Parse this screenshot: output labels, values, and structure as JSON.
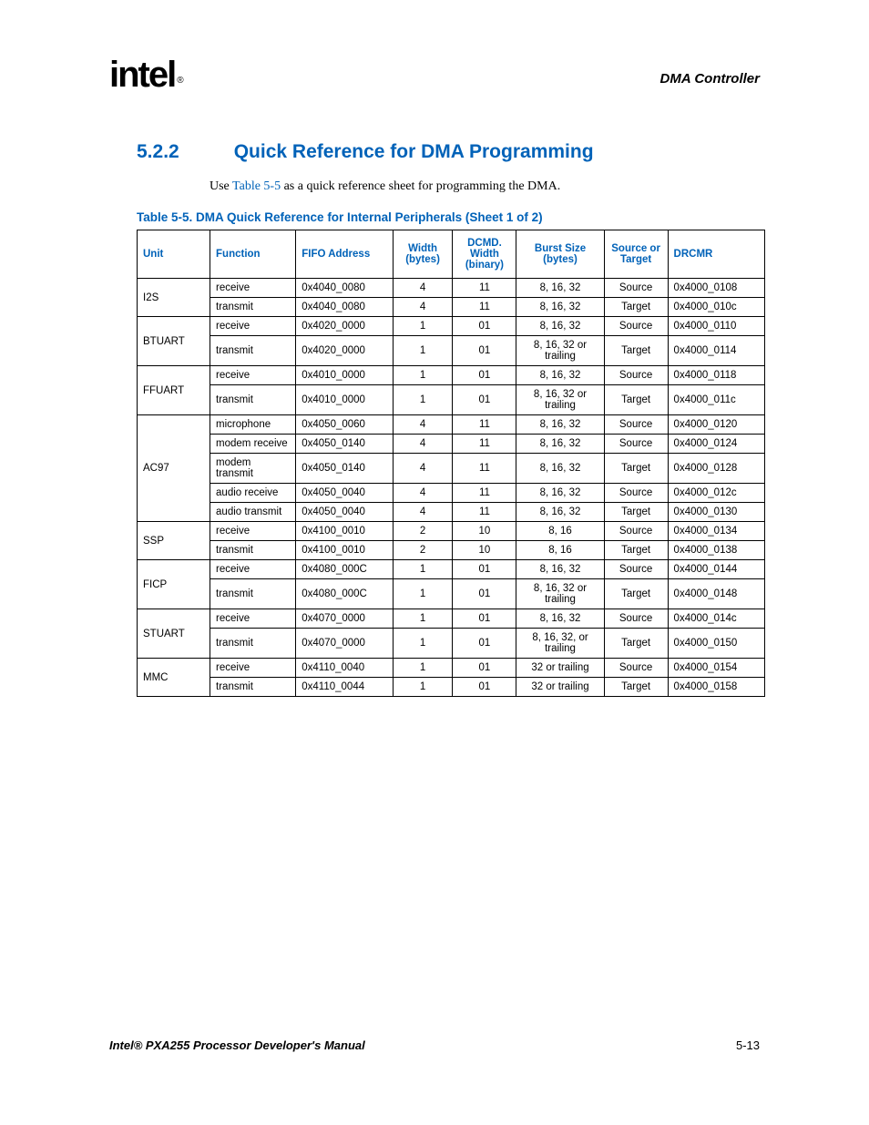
{
  "header": {
    "logo_text": "intel",
    "doc_section": "DMA Controller"
  },
  "section": {
    "number": "5.2.2",
    "title": "Quick Reference for DMA Programming"
  },
  "body": {
    "prefix": "Use ",
    "link": "Table 5-5",
    "suffix": " as a quick reference sheet for programming the DMA."
  },
  "table": {
    "caption": "Table 5-5. DMA Quick Reference for Internal Peripherals (Sheet 1 of 2)",
    "headers": {
      "unit": "Unit",
      "function": "Function",
      "fifo": "FIFO Address",
      "width": "Width (bytes)",
      "dcmd": "DCMD. Width (binary)",
      "burst": "Burst Size (bytes)",
      "src": "Source or Target",
      "drcmr": "DRCMR"
    },
    "groups": [
      {
        "unit": "I2S",
        "rows": [
          {
            "func": "receive",
            "fifo": "0x4040_0080",
            "width": "4",
            "dcmd": "11",
            "burst": "8, 16, 32",
            "src": "Source",
            "drcmr": "0x4000_0108"
          },
          {
            "func": "transmit",
            "fifo": "0x4040_0080",
            "width": "4",
            "dcmd": "11",
            "burst": "8, 16, 32",
            "src": "Target",
            "drcmr": "0x4000_010c"
          }
        ]
      },
      {
        "unit": "BTUART",
        "rows": [
          {
            "func": "receive",
            "fifo": "0x4020_0000",
            "width": "1",
            "dcmd": "01",
            "burst": "8, 16, 32",
            "src": "Source",
            "drcmr": "0x4000_0110"
          },
          {
            "func": "transmit",
            "fifo": "0x4020_0000",
            "width": "1",
            "dcmd": "01",
            "burst": "8, 16, 32 or trailing",
            "src": "Target",
            "drcmr": "0x4000_0114"
          }
        ]
      },
      {
        "unit": "FFUART",
        "rows": [
          {
            "func": "receive",
            "fifo": "0x4010_0000",
            "width": "1",
            "dcmd": "01",
            "burst": "8, 16, 32",
            "src": "Source",
            "drcmr": "0x4000_0118"
          },
          {
            "func": "transmit",
            "fifo": "0x4010_0000",
            "width": "1",
            "dcmd": "01",
            "burst": "8, 16, 32 or trailing",
            "src": "Target",
            "drcmr": "0x4000_011c"
          }
        ]
      },
      {
        "unit": "AC97",
        "rows": [
          {
            "func": "microphone",
            "fifo": "0x4050_0060",
            "width": "4",
            "dcmd": "11",
            "burst": "8, 16, 32",
            "src": "Source",
            "drcmr": "0x4000_0120"
          },
          {
            "func": "modem receive",
            "fifo": "0x4050_0140",
            "width": "4",
            "dcmd": "11",
            "burst": "8, 16, 32",
            "src": "Source",
            "drcmr": "0x4000_0124"
          },
          {
            "func": "modem transmit",
            "fifo": "0x4050_0140",
            "width": "4",
            "dcmd": "11",
            "burst": "8, 16, 32",
            "src": "Target",
            "drcmr": "0x4000_0128"
          },
          {
            "func": "audio receive",
            "fifo": "0x4050_0040",
            "width": "4",
            "dcmd": "11",
            "burst": "8, 16, 32",
            "src": "Source",
            "drcmr": "0x4000_012c"
          },
          {
            "func": "audio transmit",
            "fifo": "0x4050_0040",
            "width": "4",
            "dcmd": "11",
            "burst": "8, 16, 32",
            "src": "Target",
            "drcmr": "0x4000_0130"
          }
        ]
      },
      {
        "unit": "SSP",
        "rows": [
          {
            "func": "receive",
            "fifo": "0x4100_0010",
            "width": "2",
            "dcmd": "10",
            "burst": "8, 16",
            "src": "Source",
            "drcmr": "0x4000_0134"
          },
          {
            "func": "transmit",
            "fifo": "0x4100_0010",
            "width": "2",
            "dcmd": "10",
            "burst": "8, 16",
            "src": "Target",
            "drcmr": "0x4000_0138"
          }
        ]
      },
      {
        "unit": "FICP",
        "rows": [
          {
            "func": "receive",
            "fifo": "0x4080_000C",
            "width": "1",
            "dcmd": "01",
            "burst": "8, 16, 32",
            "src": "Source",
            "drcmr": "0x4000_0144"
          },
          {
            "func": "transmit",
            "fifo": "0x4080_000C",
            "width": "1",
            "dcmd": "01",
            "burst": "8, 16, 32 or trailing",
            "src": "Target",
            "drcmr": "0x4000_0148"
          }
        ]
      },
      {
        "unit": "STUART",
        "rows": [
          {
            "func": "receive",
            "fifo": "0x4070_0000",
            "width": "1",
            "dcmd": "01",
            "burst": "8, 16, 32",
            "src": "Source",
            "drcmr": "0x4000_014c"
          },
          {
            "func": "transmit",
            "fifo": "0x4070_0000",
            "width": "1",
            "dcmd": "01",
            "burst": "8, 16, 32, or trailing",
            "src": "Target",
            "drcmr": "0x4000_0150"
          }
        ]
      },
      {
        "unit": "MMC",
        "rows": [
          {
            "func": "receive",
            "fifo": "0x4110_0040",
            "width": "1",
            "dcmd": "01",
            "burst": "32 or trailing",
            "src": "Source",
            "drcmr": "0x4000_0154"
          },
          {
            "func": "transmit",
            "fifo": "0x4110_0044",
            "width": "1",
            "dcmd": "01",
            "burst": "32 or trailing",
            "src": "Target",
            "drcmr": "0x4000_0158"
          }
        ]
      }
    ]
  },
  "footer": {
    "manual": "Intel® PXA255 Processor Developer's Manual",
    "page": "5-13"
  }
}
